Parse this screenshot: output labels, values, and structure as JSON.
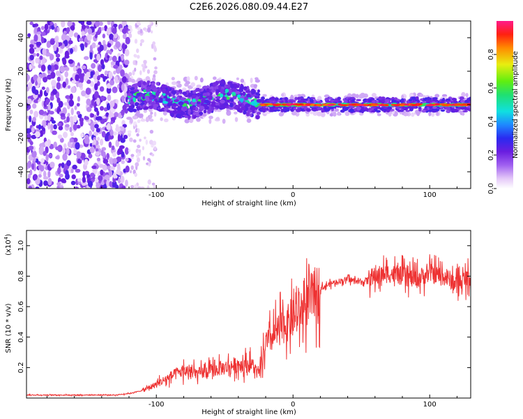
{
  "title": "C2E6.2026.080.09.44.E27",
  "chart_data": [
    {
      "type": "heatmap",
      "name": "spectrogram",
      "xlabel": "Height of straight line (km)",
      "ylabel": "Frequency (Hz)",
      "xlim": [
        -195,
        130
      ],
      "ylim": [
        -50,
        50
      ],
      "xticks": [
        -100,
        0,
        100
      ],
      "yticks": [
        -40,
        -20,
        0,
        20,
        40
      ],
      "colorbar": {
        "label": "Normalized spectral amplitude",
        "range": [
          0,
          1
        ],
        "ticks": [
          0.0,
          0.2,
          0.4,
          0.6,
          0.8
        ]
      },
      "regions": [
        {
          "name": "noise",
          "x": [
            -195,
            -120
          ],
          "freq_spread": 50,
          "amplitude": 0.15
        },
        {
          "name": "sparse-noise",
          "x": [
            -120,
            -100
          ],
          "freq_spread": 50,
          "amplitude": 0.08
        },
        {
          "name": "signal-wobble",
          "x": [
            -120,
            -25
          ],
          "center_freq": 3,
          "width": 8,
          "amplitude": 0.45
        },
        {
          "name": "signal-stable",
          "x": [
            -25,
            130
          ],
          "center_freq": 0,
          "width": 4,
          "amplitude": 0.9
        }
      ]
    },
    {
      "type": "line",
      "name": "snr",
      "xlabel": "Height of straight line (km)",
      "ylabel": "SNR (10 * v/v)",
      "scale_label": "(x10",
      "scale_exp": "4",
      "scale_close": ")",
      "xlim": [
        -195,
        130
      ],
      "ylim": [
        0,
        1.1
      ],
      "xticks": [
        -100,
        0,
        100
      ],
      "yticks": [
        0.2,
        0.4,
        0.6,
        0.8,
        1.0
      ],
      "color": "#ee3333",
      "series": [
        {
          "name": "SNR",
          "x": [
            -195,
            -150,
            -130,
            -120,
            -110,
            -100,
            -90,
            -80,
            -70,
            -60,
            -50,
            -40,
            -30,
            -25,
            -20,
            -10,
            0,
            10,
            15,
            20,
            30,
            40,
            50,
            60,
            70,
            80,
            90,
            100,
            110,
            120,
            130
          ],
          "y": [
            0.02,
            0.02,
            0.02,
            0.03,
            0.05,
            0.09,
            0.14,
            0.18,
            0.16,
            0.18,
            0.2,
            0.22,
            0.22,
            0.15,
            0.35,
            0.45,
            0.52,
            0.62,
            0.68,
            0.72,
            0.76,
            0.78,
            0.76,
            0.8,
            0.82,
            0.8,
            0.78,
            0.82,
            0.8,
            0.75,
            0.8
          ]
        }
      ]
    }
  ]
}
